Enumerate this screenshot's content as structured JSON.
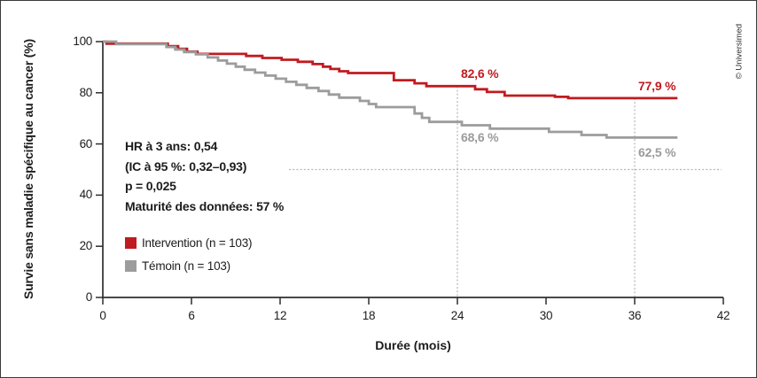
{
  "copyright": "© Universimed",
  "colors": {
    "intervention_red": "#c01b20",
    "control_gray": "#9c9c9c",
    "gray_label_text": "#9b9b9d",
    "axis_black": "#2e2e2e",
    "guide_gray": "#b5b5b5"
  },
  "stats": {
    "lines": [
      "HR à 3 ans: 0,54",
      "(IC à 95 %: 0,32–0,93)",
      "p = 0,025",
      "Maturité des données: 57 %"
    ]
  },
  "legend": {
    "items": [
      {
        "label": "Intervention (n = 103)",
        "color": "#c01b20"
      },
      {
        "label": "Témoin (n = 103)",
        "color": "#9c9c9c"
      }
    ]
  },
  "chart_data": {
    "type": "line",
    "subtype": "kaplan-meier-step",
    "title": "",
    "xlabel": "Durée (mois)",
    "ylabel": "Survie sans maladie spécifique au cancer (%)",
    "xlim": [
      0,
      42
    ],
    "ylim": [
      0,
      100
    ],
    "x_ticks": [
      0,
      6,
      12,
      18,
      24,
      30,
      36,
      42
    ],
    "y_ticks": [
      0,
      20,
      40,
      60,
      80,
      100
    ],
    "grid": false,
    "legend_position": "inside-left",
    "series": [
      {
        "name": "Intervention (n = 103)",
        "color": "#c01b20",
        "points": [
          [
            0,
            100
          ],
          [
            0.25,
            99.2
          ],
          [
            4.4,
            98.2
          ],
          [
            5.1,
            97.2
          ],
          [
            5.7,
            96.1
          ],
          [
            6.4,
            95.2
          ],
          [
            9.7,
            94.4
          ],
          [
            10.8,
            93.6
          ],
          [
            12.1,
            92.9
          ],
          [
            13.2,
            92.1
          ],
          [
            14.2,
            91.2
          ],
          [
            14.9,
            90.2
          ],
          [
            15.4,
            89.3
          ],
          [
            16.0,
            88.4
          ],
          [
            16.6,
            87.7
          ],
          [
            19.7,
            84.9
          ],
          [
            21.1,
            83.7
          ],
          [
            21.9,
            82.6
          ],
          [
            25.2,
            81.4
          ],
          [
            26.0,
            80.3
          ],
          [
            27.2,
            78.9
          ],
          [
            30.6,
            78.4
          ],
          [
            31.5,
            77.9
          ],
          [
            38.9,
            77.9
          ]
        ]
      },
      {
        "name": "Témoin (n = 103)",
        "color": "#9c9c9c",
        "points": [
          [
            0,
            100
          ],
          [
            0.9,
            99.0
          ],
          [
            4.3,
            97.9
          ],
          [
            4.9,
            96.9
          ],
          [
            5.5,
            95.9
          ],
          [
            6.3,
            95.0
          ],
          [
            7.1,
            93.8
          ],
          [
            7.8,
            92.6
          ],
          [
            8.4,
            91.4
          ],
          [
            9.0,
            90.2
          ],
          [
            9.6,
            89.0
          ],
          [
            10.3,
            87.9
          ],
          [
            11.0,
            86.7
          ],
          [
            11.7,
            85.5
          ],
          [
            12.4,
            84.3
          ],
          [
            13.1,
            83.1
          ],
          [
            13.8,
            81.9
          ],
          [
            14.6,
            80.7
          ],
          [
            15.3,
            79.3
          ],
          [
            16.0,
            78.1
          ],
          [
            17.4,
            76.8
          ],
          [
            18.0,
            75.6
          ],
          [
            18.5,
            74.4
          ],
          [
            21.1,
            71.9
          ],
          [
            21.6,
            70.2
          ],
          [
            22.1,
            68.6
          ],
          [
            24.3,
            67.3
          ],
          [
            26.2,
            66.0
          ],
          [
            30.2,
            64.7
          ],
          [
            32.4,
            63.5
          ],
          [
            34.1,
            62.5
          ],
          [
            38.9,
            62.5
          ]
        ]
      }
    ],
    "reference_lines": {
      "horizontal_dotted_pct": 50,
      "vertical_dotted_months": [
        24,
        36
      ]
    },
    "callouts": [
      {
        "text": "82,6 %",
        "month": 24,
        "value": 82.6,
        "series": 0,
        "placement": "above"
      },
      {
        "text": "77,9 %",
        "month": 36,
        "value": 77.9,
        "series": 0,
        "placement": "above"
      },
      {
        "text": "68,6 %",
        "month": 24,
        "value": 68.6,
        "series": 1,
        "placement": "below"
      },
      {
        "text": "62,5 %",
        "month": 36,
        "value": 62.5,
        "series": 1,
        "placement": "below"
      }
    ]
  }
}
